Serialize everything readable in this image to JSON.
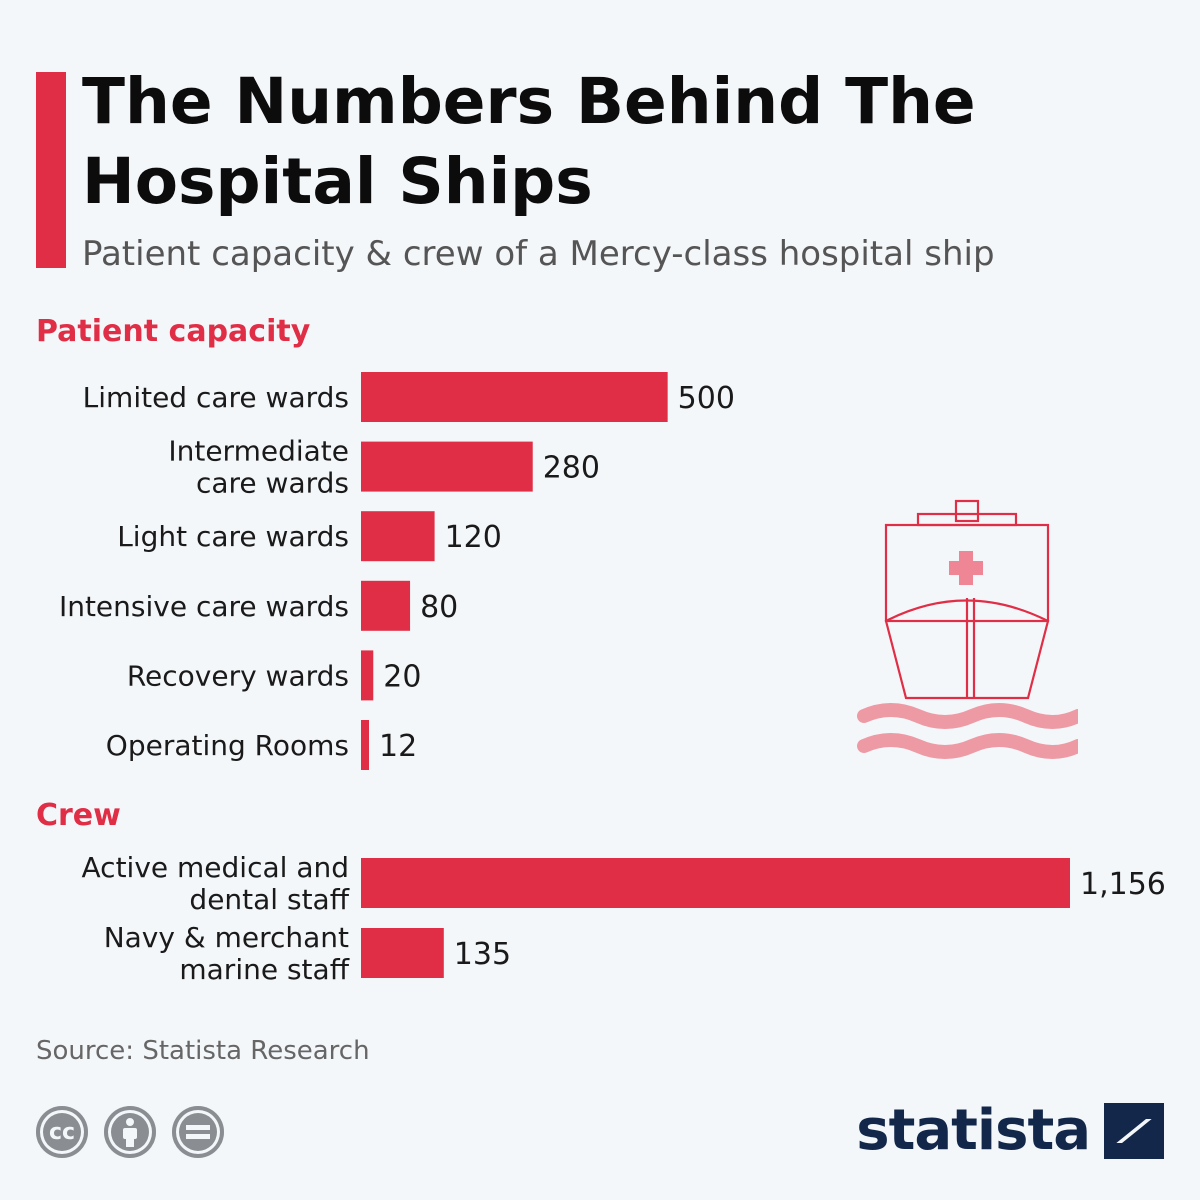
{
  "title": "The Numbers Behind The Hospital Ships",
  "subtitle": "Patient capacity & crew of a Mercy-class hospital ship",
  "source": "Source: Statista Research",
  "brand": "statista",
  "license_icons": [
    "cc-icon",
    "attribution-icon",
    "no-derivatives-icon"
  ],
  "colors": {
    "accent": "#e02e46",
    "ship": "#e02e46",
    "waves": "#ee9aa5",
    "brand": "#13274a"
  },
  "chart_data": [
    {
      "type": "bar",
      "orientation": "horizontal",
      "title": "Patient capacity",
      "categories": [
        [
          "Limited care wards"
        ],
        [
          "Intermediate",
          "care wards"
        ],
        [
          "Light care wards"
        ],
        [
          "Intensive care wards"
        ],
        [
          "Recovery wards"
        ],
        [
          "Operating Rooms"
        ]
      ],
      "values": [
        500,
        280,
        120,
        80,
        20,
        12
      ],
      "value_labels": [
        "500",
        "280",
        "120",
        "80",
        "20",
        "12"
      ]
    },
    {
      "type": "bar",
      "orientation": "horizontal",
      "title": "Crew",
      "categories": [
        [
          "Active medical and",
          "dental staff"
        ],
        [
          "Navy & merchant",
          "marine staff"
        ]
      ],
      "values": [
        1156,
        135
      ],
      "value_labels": [
        "1,156",
        "135"
      ]
    }
  ]
}
